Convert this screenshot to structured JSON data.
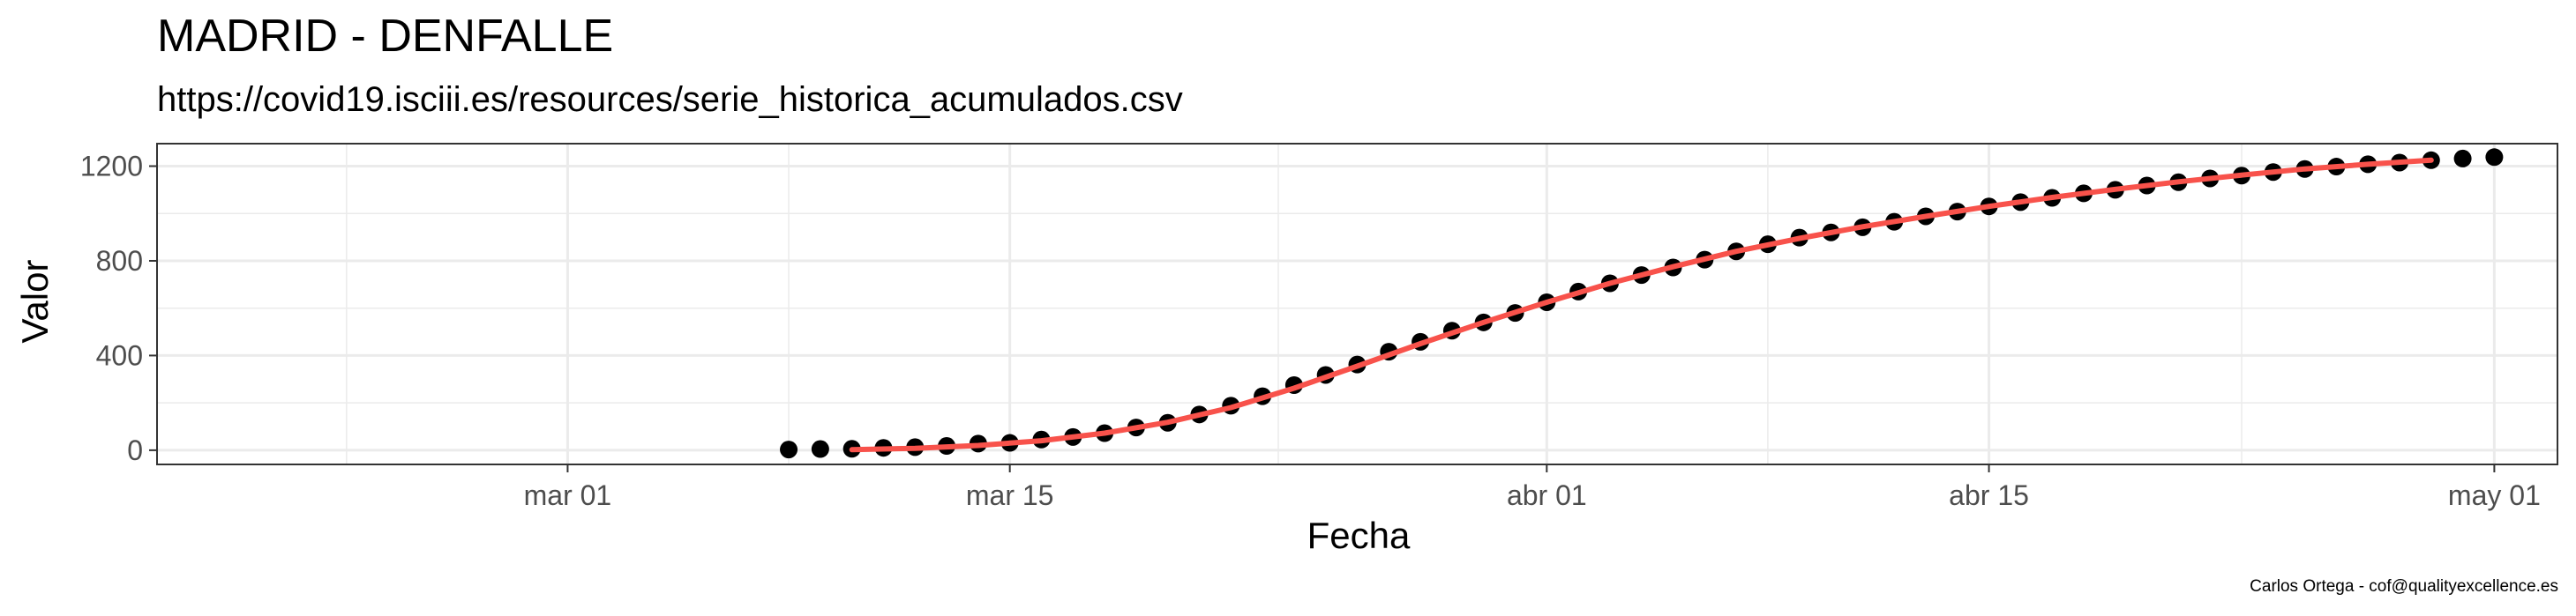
{
  "chart_data": {
    "type": "scatter",
    "title": "MADRID - DENFALLE",
    "subtitle": "https://covid19.isciii.es/resources/serie_historica_acumulados.csv",
    "xlabel": "Fecha",
    "ylabel": "Valor",
    "caption": "Carlos Ortega - cof@qualityexcellence.es",
    "x_ticks": [
      {
        "date": "2020-03-01",
        "label": "mar 01"
      },
      {
        "date": "2020-03-15",
        "label": "mar 15"
      },
      {
        "date": "2020-04-01",
        "label": "abr 01"
      },
      {
        "date": "2020-04-15",
        "label": "abr 15"
      },
      {
        "date": "2020-05-01",
        "label": "may 01"
      }
    ],
    "y_ticks": [
      0,
      400,
      800,
      1200
    ],
    "xlim": [
      "2020-02-17",
      "2020-05-03"
    ],
    "ylim": [
      -60,
      1295
    ],
    "grid": true,
    "colors": {
      "points": "#000000",
      "fit_line": "#f8524b"
    },
    "series": [
      {
        "type": "scatter",
        "points": [
          [
            "2020-03-08",
            3
          ],
          [
            "2020-03-09",
            5
          ],
          [
            "2020-03-10",
            6
          ],
          [
            "2020-03-11",
            10
          ],
          [
            "2020-03-12",
            13
          ],
          [
            "2020-03-13",
            18
          ],
          [
            "2020-03-14",
            28
          ],
          [
            "2020-03-15",
            31
          ],
          [
            "2020-03-16",
            45
          ],
          [
            "2020-03-17",
            56
          ],
          [
            "2020-03-18",
            72
          ],
          [
            "2020-03-19",
            96
          ],
          [
            "2020-03-20",
            116
          ],
          [
            "2020-03-21",
            151
          ],
          [
            "2020-03-22",
            188
          ],
          [
            "2020-03-23",
            228
          ],
          [
            "2020-03-24",
            275
          ],
          [
            "2020-03-25",
            318
          ],
          [
            "2020-03-26",
            362
          ],
          [
            "2020-03-27",
            416
          ],
          [
            "2020-03-28",
            458
          ],
          [
            "2020-03-29",
            505
          ],
          [
            "2020-03-30",
            540
          ],
          [
            "2020-03-31",
            580
          ],
          [
            "2020-04-01",
            625
          ],
          [
            "2020-04-02",
            670
          ],
          [
            "2020-04-03",
            705
          ],
          [
            "2020-04-04",
            740
          ],
          [
            "2020-04-05",
            772
          ],
          [
            "2020-04-06",
            805
          ],
          [
            "2020-04-07",
            840
          ],
          [
            "2020-04-08",
            870
          ],
          [
            "2020-04-09",
            898
          ],
          [
            "2020-04-10",
            920
          ],
          [
            "2020-04-11",
            942
          ],
          [
            "2020-04-12",
            965
          ],
          [
            "2020-04-13",
            988
          ],
          [
            "2020-04-14",
            1008
          ],
          [
            "2020-04-15",
            1030
          ],
          [
            "2020-04-16",
            1048
          ],
          [
            "2020-04-17",
            1066
          ],
          [
            "2020-04-18",
            1085
          ],
          [
            "2020-04-19",
            1100
          ],
          [
            "2020-04-20",
            1118
          ],
          [
            "2020-04-21",
            1132
          ],
          [
            "2020-04-22",
            1148
          ],
          [
            "2020-04-23",
            1160
          ],
          [
            "2020-04-24",
            1175
          ],
          [
            "2020-04-25",
            1188
          ],
          [
            "2020-04-26",
            1198
          ],
          [
            "2020-04-27",
            1208
          ],
          [
            "2020-04-28",
            1215
          ],
          [
            "2020-04-29",
            1225
          ],
          [
            "2020-04-30",
            1232
          ],
          [
            "2020-05-01",
            1238
          ]
        ]
      },
      {
        "type": "line",
        "points": [
          [
            "2020-03-10",
            2
          ],
          [
            "2020-03-12",
            8
          ],
          [
            "2020-03-14",
            20
          ],
          [
            "2020-03-16",
            40
          ],
          [
            "2020-03-18",
            72
          ],
          [
            "2020-03-20",
            118
          ],
          [
            "2020-03-22",
            180
          ],
          [
            "2020-03-24",
            262
          ],
          [
            "2020-03-26",
            355
          ],
          [
            "2020-03-28",
            450
          ],
          [
            "2020-03-30",
            540
          ],
          [
            "2020-04-01",
            625
          ],
          [
            "2020-04-03",
            705
          ],
          [
            "2020-04-05",
            775
          ],
          [
            "2020-04-07",
            840
          ],
          [
            "2020-04-09",
            895
          ],
          [
            "2020-04-11",
            944
          ],
          [
            "2020-04-13",
            988
          ],
          [
            "2020-04-15",
            1030
          ],
          [
            "2020-04-17",
            1068
          ],
          [
            "2020-04-19",
            1102
          ],
          [
            "2020-04-21",
            1134
          ],
          [
            "2020-04-23",
            1162
          ],
          [
            "2020-04-25",
            1188
          ],
          [
            "2020-04-27",
            1208
          ],
          [
            "2020-04-29",
            1225
          ]
        ]
      }
    ]
  }
}
